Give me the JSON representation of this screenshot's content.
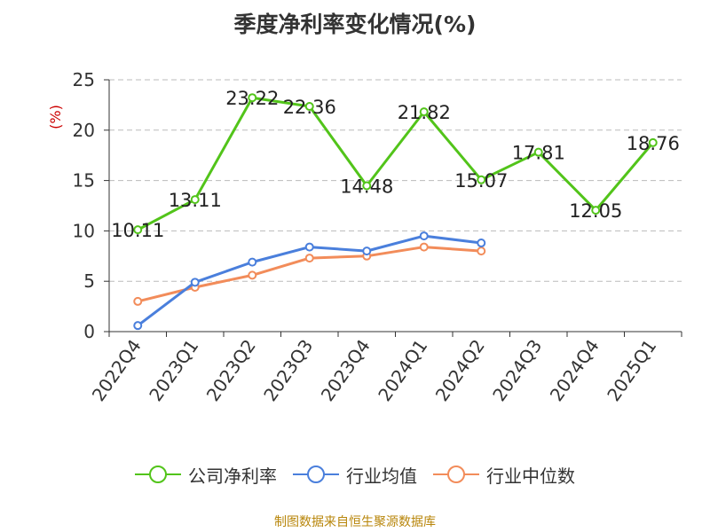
{
  "title": "季度净利率变化情况(%)",
  "source": "制图数据来自恒生聚源数据库",
  "chart_data": {
    "type": "line",
    "title": "季度净利率变化情况(%)",
    "ylabel": "(%)",
    "ylabel_color": "#cc0000",
    "ylim": [
      0,
      25
    ],
    "yticks": [
      0,
      5,
      10,
      15,
      20,
      25
    ],
    "grid": true,
    "legend_position": "bottom",
    "categories": [
      "2022Q4",
      "2023Q1",
      "2023Q2",
      "2023Q3",
      "2023Q4",
      "2024Q1",
      "2024Q2",
      "2024Q3",
      "2024Q4",
      "2025Q1"
    ],
    "series": [
      {
        "name": "公司净利率",
        "color": "#52c41a",
        "show_labels": true,
        "values": [
          10.11,
          13.11,
          23.22,
          22.36,
          14.48,
          21.82,
          15.07,
          17.81,
          12.05,
          18.76
        ]
      },
      {
        "name": "行业均值",
        "color": "#4a7fdc",
        "show_labels": false,
        "values": [
          0.6,
          4.9,
          6.9,
          8.4,
          8.0,
          9.5,
          8.8,
          null,
          null,
          null
        ]
      },
      {
        "name": "行业中位数",
        "color": "#f28c5a",
        "show_labels": false,
        "values": [
          3.0,
          4.4,
          5.6,
          7.3,
          7.5,
          8.4,
          8.0,
          null,
          null,
          null
        ]
      }
    ]
  }
}
